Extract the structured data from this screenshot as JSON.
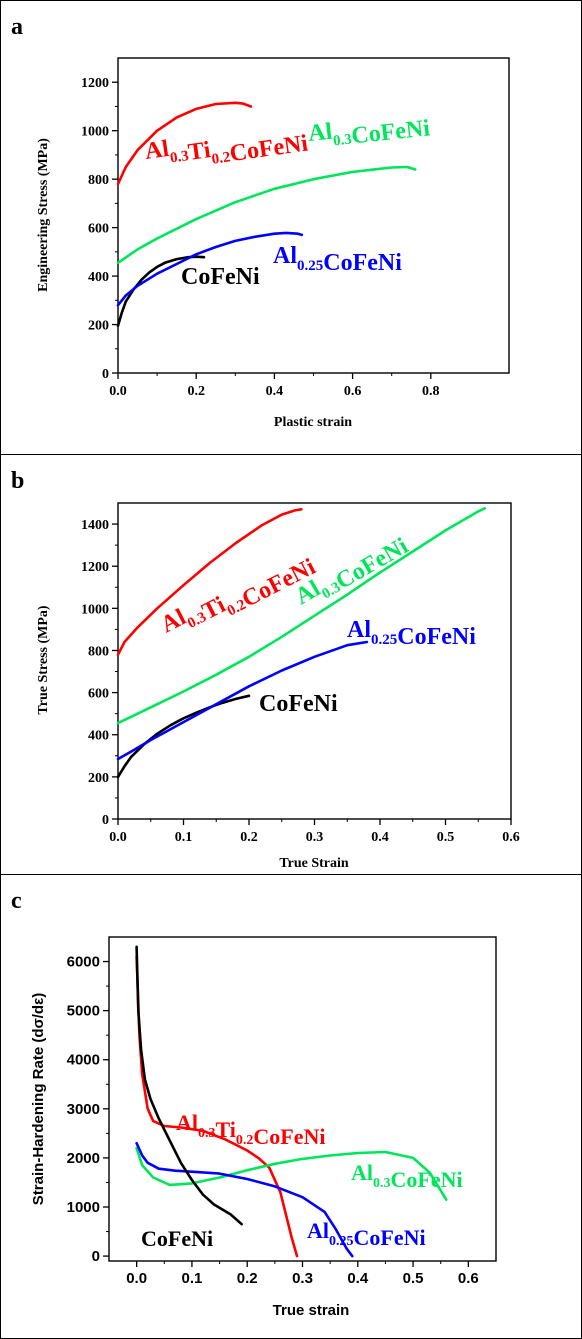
{
  "panels": [
    {
      "label": "a",
      "chart_data": {
        "type": "line",
        "title": "",
        "xlabel": "Plastic strain",
        "ylabel": "Engineering Stress (MPa)",
        "xlim": [
          0,
          1.0
        ],
        "ylim": [
          0,
          1300
        ],
        "xticks": [
          0.0,
          0.2,
          0.4,
          0.6,
          0.8
        ],
        "xtick_labels": [
          "0.0",
          "0.2",
          "0.4",
          "0.6",
          "0.8"
        ],
        "yticks": [
          0,
          200,
          400,
          600,
          800,
          1000,
          1200
        ],
        "ytick_labels": [
          "0",
          "200",
          "400",
          "600",
          "800",
          "1000",
          "1200"
        ],
        "grid": false,
        "series": [
          {
            "name": "CoFeNi",
            "color": "#000000",
            "x": [
              0,
              0.01,
              0.02,
              0.04,
              0.06,
              0.08,
              0.1,
              0.12,
              0.15,
              0.18,
              0.2,
              0.22
            ],
            "y": [
              195,
              250,
              295,
              345,
              385,
              415,
              438,
              455,
              470,
              478,
              480,
              478
            ]
          },
          {
            "name": "Al0.25CoFeNi",
            "color": "#0000ff",
            "x": [
              0,
              0.02,
              0.05,
              0.1,
              0.15,
              0.2,
              0.25,
              0.3,
              0.35,
              0.4,
              0.43,
              0.46,
              0.47
            ],
            "y": [
              280,
              320,
              360,
              410,
              450,
              490,
              520,
              545,
              562,
              575,
              578,
              575,
              570
            ]
          },
          {
            "name": "Al0.3CoFeNi",
            "color": "#00e65a",
            "x": [
              0,
              0.05,
              0.1,
              0.2,
              0.3,
              0.4,
              0.5,
              0.6,
              0.7,
              0.74,
              0.76
            ],
            "y": [
              455,
              510,
              555,
              635,
              705,
              760,
              800,
              830,
              848,
              850,
              840
            ]
          },
          {
            "name": "Al0.3Ti0.2CoFeNi",
            "color": "#ff0000",
            "x": [
              0,
              0.02,
              0.05,
              0.1,
              0.15,
              0.2,
              0.25,
              0.3,
              0.32,
              0.34
            ],
            "y": [
              780,
              850,
              920,
              1000,
              1055,
              1090,
              1110,
              1115,
              1112,
              1100
            ]
          }
        ]
      },
      "annotations": [
        {
          "base": "Al",
          "sub1": "0.3",
          "mid": "Ti",
          "sub2": "0.2",
          "tail": "CoFeNi",
          "color": "#ff0000"
        },
        {
          "base": "Al",
          "sub1": "0.3",
          "tail": "CoFeNi",
          "color": "#00e65a"
        },
        {
          "base": "Al",
          "sub1": "0.25",
          "tail": "CoFeNi",
          "color": "#0000ff"
        },
        {
          "tail": "CoFeNi",
          "color": "#000000"
        }
      ]
    },
    {
      "label": "b",
      "chart_data": {
        "type": "line",
        "title": "",
        "xlabel": "True Strain",
        "ylabel": "True Stress (MPa)",
        "xlim": [
          0,
          0.6
        ],
        "ylim": [
          0,
          1500
        ],
        "xticks": [
          0.0,
          0.1,
          0.2,
          0.3,
          0.4,
          0.5,
          0.6
        ],
        "xtick_labels": [
          "0.0",
          "0.1",
          "0.2",
          "0.3",
          "0.4",
          "0.5",
          "0.6"
        ],
        "yticks": [
          0,
          200,
          400,
          600,
          800,
          1000,
          1200,
          1400
        ],
        "ytick_labels": [
          "0",
          "200",
          "400",
          "600",
          "800",
          "1000",
          "1200",
          "1400"
        ],
        "grid": false,
        "series": [
          {
            "name": "CoFeNi",
            "color": "#000000",
            "x": [
              0,
              0.01,
              0.02,
              0.04,
              0.06,
              0.08,
              0.1,
              0.12,
              0.14,
              0.16,
              0.18,
              0.2
            ],
            "y": [
              200,
              250,
              295,
              355,
              405,
              445,
              478,
              505,
              530,
              552,
              570,
              585
            ]
          },
          {
            "name": "Al0.25CoFeNi",
            "color": "#0000ff",
            "x": [
              0,
              0.02,
              0.05,
              0.1,
              0.15,
              0.2,
              0.25,
              0.3,
              0.35,
              0.38
            ],
            "y": [
              285,
              320,
              375,
              460,
              545,
              630,
              705,
              770,
              825,
              840
            ]
          },
          {
            "name": "Al0.3CoFeNi",
            "color": "#00e65a",
            "x": [
              0,
              0.05,
              0.1,
              0.15,
              0.2,
              0.25,
              0.3,
              0.35,
              0.4,
              0.45,
              0.5,
              0.55,
              0.56
            ],
            "y": [
              455,
              530,
              605,
              685,
              770,
              865,
              965,
              1065,
              1170,
              1270,
              1370,
              1460,
              1475
            ]
          },
          {
            "name": "Al0.3Ti0.2CoFeNi",
            "color": "#ff0000",
            "x": [
              0,
              0.01,
              0.03,
              0.06,
              0.1,
              0.14,
              0.18,
              0.22,
              0.25,
              0.27,
              0.28
            ],
            "y": [
              780,
              840,
              910,
              1000,
              1110,
              1215,
              1310,
              1395,
              1445,
              1465,
              1470
            ]
          }
        ]
      },
      "annotations": [
        {
          "base": "Al",
          "sub1": "0.3",
          "mid": "Ti",
          "sub2": "0.2",
          "tail": "CoFeNi",
          "color": "#ff0000"
        },
        {
          "base": "Al",
          "sub1": "0.3",
          "tail": "CoFeNi",
          "color": "#00e65a"
        },
        {
          "base": "Al",
          "sub1": "0.25",
          "tail": "CoFeNi",
          "color": "#0000ff"
        },
        {
          "tail": "CoFeNi",
          "color": "#000000"
        }
      ]
    },
    {
      "label": "c",
      "chart_data": {
        "type": "line",
        "title": "",
        "xlabel": "True strain",
        "ylabel": "Strain-Hardening Rate (dσ/dε)",
        "xlim": [
          -0.05,
          0.65
        ],
        "ylim": [
          -100,
          6500
        ],
        "xticks": [
          0.0,
          0.1,
          0.2,
          0.3,
          0.4,
          0.5,
          0.6
        ],
        "xtick_labels": [
          "0.0",
          "0.1",
          "0.2",
          "0.3",
          "0.4",
          "0.5",
          "0.6"
        ],
        "yticks": [
          0,
          1000,
          2000,
          3000,
          4000,
          5000,
          6000
        ],
        "ytick_labels": [
          "0",
          "1000",
          "2000",
          "3000",
          "4000",
          "5000",
          "6000"
        ],
        "grid": false,
        "series": [
          {
            "name": "Al0.3Ti0.2CoFeNi",
            "color": "#ff0000",
            "x": [
              0.0,
              0.005,
              0.01,
              0.02,
              0.03,
              0.05,
              0.08,
              0.12,
              0.16,
              0.2,
              0.22,
              0.24,
              0.26,
              0.27,
              0.28,
              0.29
            ],
            "y": [
              6100,
              4500,
              3700,
              3000,
              2750,
              2650,
              2620,
              2550,
              2380,
              2150,
              2000,
              1800,
              1300,
              850,
              400,
              0
            ]
          },
          {
            "name": "Al0.3CoFeNi",
            "color": "#00e65a",
            "x": [
              0.0,
              0.01,
              0.03,
              0.06,
              0.1,
              0.15,
              0.2,
              0.25,
              0.3,
              0.35,
              0.4,
              0.45,
              0.5,
              0.53,
              0.56
            ],
            "y": [
              2200,
              1850,
              1600,
              1450,
              1480,
              1600,
              1750,
              1880,
              1980,
              2050,
              2100,
              2120,
              2000,
              1700,
              1150
            ]
          },
          {
            "name": "Al0.25CoFeNi",
            "color": "#0000ff",
            "x": [
              0.0,
              0.01,
              0.02,
              0.04,
              0.07,
              0.1,
              0.15,
              0.2,
              0.25,
              0.3,
              0.34,
              0.36,
              0.38,
              0.39
            ],
            "y": [
              2300,
              2050,
              1900,
              1780,
              1740,
              1720,
              1680,
              1570,
              1420,
              1200,
              900,
              550,
              150,
              0
            ]
          },
          {
            "name": "CoFeNi",
            "color": "#000000",
            "x": [
              0.0,
              0.003,
              0.008,
              0.015,
              0.025,
              0.04,
              0.06,
              0.08,
              0.1,
              0.12,
              0.14,
              0.17,
              0.19
            ],
            "y": [
              6300,
              5000,
              4200,
              3600,
              3200,
              2800,
              2350,
              1900,
              1550,
              1250,
              1050,
              850,
              650
            ]
          }
        ]
      },
      "annotations": [
        {
          "base": "Al",
          "sub1": "0.3",
          "mid": "Ti",
          "sub2": "0.2",
          "tail": "CoFeNi",
          "color": "#ff0000"
        },
        {
          "base": "Al",
          "sub1": "0.3",
          "tail": "CoFeNi",
          "color": "#00e65a"
        },
        {
          "base": "Al",
          "sub1": "0.25",
          "tail": "CoFeNi",
          "color": "#0000ff"
        },
        {
          "tail": "CoFeNi",
          "color": "#000000"
        }
      ]
    }
  ]
}
